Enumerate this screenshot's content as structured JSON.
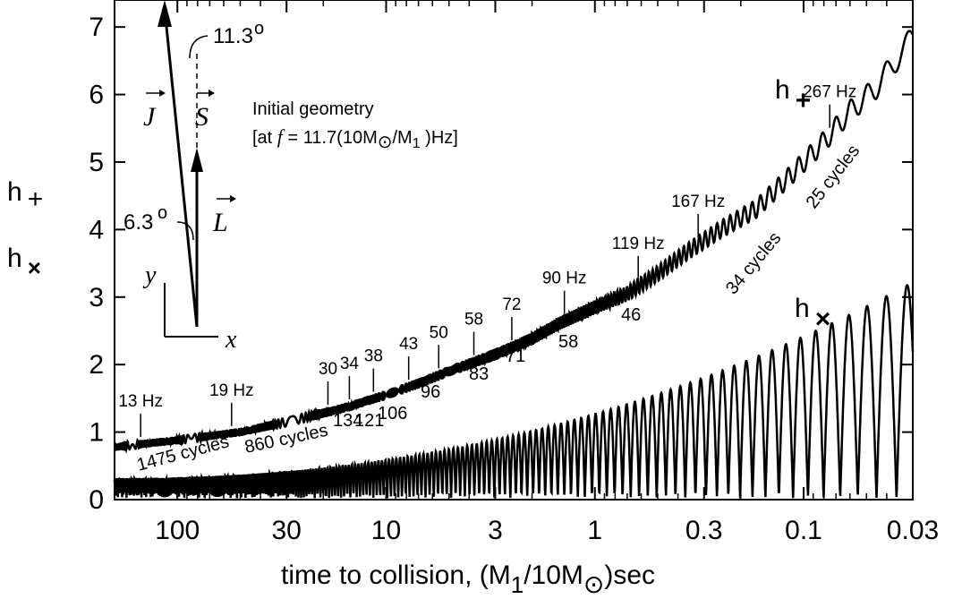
{
  "chart_data": {
    "type": "line",
    "title": "",
    "xlabel": {
      "prefix": "time to collision,  (M",
      "sub1": "1",
      "mid": "/10M",
      "suffix": ")sec"
    },
    "xscale": "log-reversed",
    "xlim": [
      200,
      0.03
    ],
    "ylim": [
      0,
      7.4
    ],
    "x_ticks": [
      {
        "value": 100,
        "label": "100"
      },
      {
        "value": 30,
        "label": "30"
      },
      {
        "value": 10,
        "label": "10"
      },
      {
        "value": 3,
        "label": "3"
      },
      {
        "value": 1,
        "label": "1"
      },
      {
        "value": 0.3,
        "label": "0.3"
      },
      {
        "value": 0.1,
        "label": "0.1"
      },
      {
        "value": 0.03,
        "label": "0.03"
      }
    ],
    "y_ticks": [
      0,
      1,
      2,
      3,
      4,
      5,
      6,
      7
    ],
    "ylabel": {
      "plus": "h",
      "plus_sub": "+",
      "cross": "h",
      "cross_sub": "×"
    },
    "series": [
      {
        "name": "h +",
        "label_text": "h",
        "label_sub": "+",
        "x": [
          200,
          100,
          50,
          30,
          20,
          15,
          10,
          7,
          5,
          3,
          2,
          1.5,
          1,
          0.7,
          0.5,
          0.35,
          0.25,
          0.17,
          0.12,
          0.08,
          0.06,
          0.045,
          0.03
        ],
        "y": [
          0.78,
          0.88,
          1.0,
          1.15,
          1.28,
          1.38,
          1.55,
          1.72,
          1.9,
          2.15,
          2.38,
          2.6,
          2.85,
          3.05,
          3.35,
          3.7,
          4.0,
          4.3,
          4.75,
          5.3,
          5.75,
          6.1,
          6.85
        ]
      },
      {
        "name": "h ×",
        "label_text": "h",
        "label_sub": "×",
        "peaks": [
          {
            "t": 0.9,
            "y": 1.5
          },
          {
            "t": 0.55,
            "y": 1.8
          },
          {
            "t": 0.32,
            "y": 2.1
          },
          {
            "t": 0.19,
            "y": 2.35
          },
          {
            "t": 0.05,
            "y": 3.28
          }
        ]
      }
    ],
    "frequency_markers": [
      {
        "t": 150,
        "label": "13 Hz"
      },
      {
        "t": 55,
        "label": "19 Hz"
      },
      {
        "t": 19,
        "label": "30"
      },
      {
        "t": 15,
        "label": "34"
      },
      {
        "t": 11.5,
        "label": "38"
      },
      {
        "t": 7.8,
        "label": "43"
      },
      {
        "t": 5.6,
        "label": "50"
      },
      {
        "t": 3.8,
        "label": "58"
      },
      {
        "t": 2.5,
        "label": "72"
      },
      {
        "t": 1.4,
        "label": "90 Hz"
      },
      {
        "t": 0.62,
        "label": "119 Hz"
      },
      {
        "t": 0.32,
        "label": "167 Hz"
      },
      {
        "t": 0.075,
        "label": "267 Hz"
      }
    ],
    "cycle_labels": [
      {
        "text": "1475 cycles"
      },
      {
        "text": "860 cycles"
      },
      {
        "text": "134"
      },
      {
        "text": "121"
      },
      {
        "text": "106"
      },
      {
        "text": "96"
      },
      {
        "text": "83"
      },
      {
        "text": "71"
      },
      {
        "text": "58"
      },
      {
        "text": "46"
      },
      {
        "text": "34 cycles"
      },
      {
        "text": "25 cycles"
      }
    ],
    "inset": {
      "title": "Initial geometry",
      "subtitle_prefix": "[at ",
      "subtitle_f": "f",
      "subtitle_mid": " = 11.7(10M",
      "subtitle_sub": "1",
      "subtitle_end": " )Hz]",
      "angle_js": "11.3",
      "angle_jl": "6.3",
      "deg": "o",
      "vec_j": "J",
      "vec_s": "S",
      "vec_l": "L",
      "axis_x": "x",
      "axis_y": "y"
    }
  }
}
